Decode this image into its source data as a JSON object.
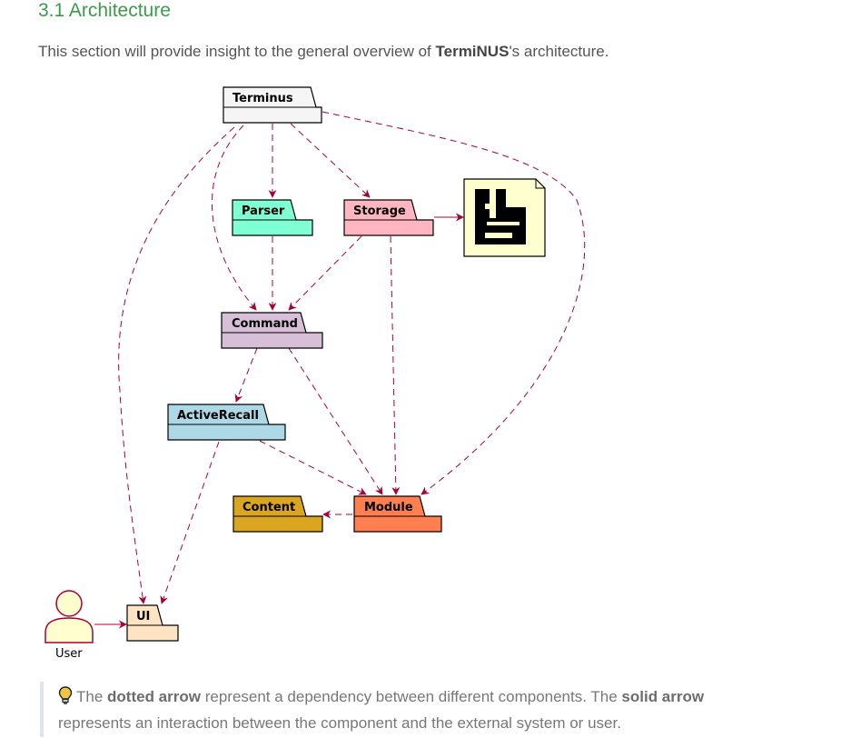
{
  "section": {
    "title": "3.1 Architecture",
    "intro_before": "This section will provide insight to the general overview of ",
    "intro_bold": "TermiNUS",
    "intro_after": "'s architecture."
  },
  "diagram": {
    "packages": {
      "terminus": {
        "label": "Terminus",
        "color": "#f5f5f5"
      },
      "parser": {
        "label": "Parser",
        "color": "#7fffd4"
      },
      "storage": {
        "label": "Storage",
        "color": "#ffb6c1"
      },
      "command": {
        "label": "Command",
        "color": "#d8bfd8"
      },
      "active_recall": {
        "label": "ActiveRecall",
        "color": "#add8e6"
      },
      "content": {
        "label": "Content",
        "color": "#daa520"
      },
      "module": {
        "label": "Module",
        "color": "#ff7f50"
      },
      "ui": {
        "label": "UI",
        "color": "#ffe4c4"
      }
    },
    "actor": {
      "label": "User",
      "color": "#fefece"
    },
    "file_icon": "file-icon",
    "arrow_color": "#a80036"
  },
  "note": {
    "icon": "lightbulb-icon",
    "text1": "The ",
    "bold1": "dotted arrow",
    "text2": " represent a dependency between different components. The ",
    "bold2": "solid arrow",
    "text3": " represents an interaction between the component and the external system or user."
  }
}
